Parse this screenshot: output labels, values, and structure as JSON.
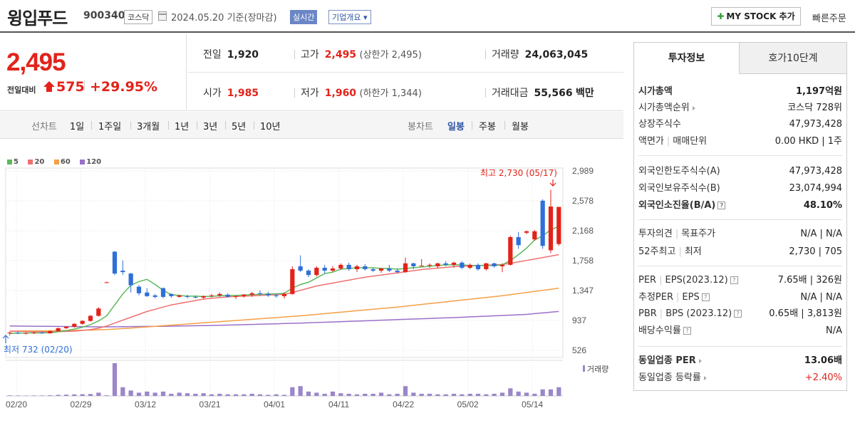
{
  "header": {
    "name": "윙입푸드",
    "code": "900340",
    "market": "코스닥",
    "date": "2024.05.20",
    "basis": "기준(장마감)",
    "realtime": "실시간",
    "company_overview": "기업개요 ▾",
    "mystock_label": "MY STOCK 추가",
    "quick_order": "빠른주문"
  },
  "price": {
    "current": "2,495",
    "change_label": "전일대비",
    "change": "575",
    "change_pct": "+29.95%"
  },
  "stats": {
    "prev_label": "전일",
    "prev": "1,920",
    "high_label": "고가",
    "high": "2,495",
    "upper_limit": "(상한가 2,495)",
    "volume_label": "거래량",
    "volume": "24,063,045",
    "open_label": "시가",
    "open": "1,985",
    "low_label": "저가",
    "low": "1,960",
    "lower_limit": "(하한가 1,344)",
    "amount_label": "거래대금",
    "amount": "55,566",
    "amount_unit": "백만"
  },
  "period_bar": {
    "line_label": "선차트",
    "periods": [
      "1일",
      "1주일",
      "3개월",
      "1년",
      "3년",
      "5년",
      "10년"
    ],
    "candle_label": "봉차트",
    "candles": [
      "일봉",
      "주봉",
      "월봉"
    ],
    "selected_candle": "일봉"
  },
  "colors": {
    "up": "#e2231a",
    "down": "#2f6fd8",
    "ma5": "#5cb85c",
    "ma20": "#f07070",
    "ma60": "#f5a047",
    "ma120": "#9b70c9",
    "volume": "#9b86c9"
  },
  "chart_data": {
    "type": "candlestick",
    "legend": [
      "5",
      "20",
      "60",
      "120"
    ],
    "y_ticks": [
      "2,989",
      "2,578",
      "2,168",
      "1,758",
      "1,347",
      "937",
      "526"
    ],
    "y_range": [
      526,
      2989
    ],
    "x_ticks": [
      "02/20",
      "02/29",
      "03/12",
      "03/21",
      "04/01",
      "04/11",
      "04/22",
      "05/02",
      "05/14"
    ],
    "annotation_high": "최고 2,730 (05/17)",
    "annotation_low": "최저 732 (02/20)",
    "volume_label": "거래량",
    "candles": [
      {
        "o": 760,
        "h": 780,
        "l": 732,
        "c": 770
      },
      {
        "o": 770,
        "h": 790,
        "l": 750,
        "c": 760
      },
      {
        "o": 760,
        "h": 775,
        "l": 745,
        "c": 765
      },
      {
        "o": 765,
        "h": 780,
        "l": 750,
        "c": 770
      },
      {
        "o": 770,
        "h": 785,
        "l": 755,
        "c": 760
      },
      {
        "o": 760,
        "h": 800,
        "l": 755,
        "c": 790
      },
      {
        "o": 790,
        "h": 840,
        "l": 780,
        "c": 830
      },
      {
        "o": 830,
        "h": 860,
        "l": 820,
        "c": 850
      },
      {
        "o": 850,
        "h": 900,
        "l": 840,
        "c": 890
      },
      {
        "o": 890,
        "h": 940,
        "l": 880,
        "c": 930
      },
      {
        "o": 930,
        "h": 1010,
        "l": 920,
        "c": 1000
      },
      {
        "o": 1000,
        "h": 1120,
        "l": 990,
        "c": 1100
      },
      {
        "o": 1460,
        "h": 1470,
        "l": 1450,
        "c": 1460
      },
      {
        "o": 1880,
        "h": 1890,
        "l": 1560,
        "c": 1580
      },
      {
        "o": 1620,
        "h": 1760,
        "l": 1560,
        "c": 1600
      },
      {
        "o": 1580,
        "h": 1590,
        "l": 1320,
        "c": 1420
      },
      {
        "o": 1400,
        "h": 1420,
        "l": 1280,
        "c": 1310
      },
      {
        "o": 1320,
        "h": 1380,
        "l": 1260,
        "c": 1270
      },
      {
        "o": 1280,
        "h": 1300,
        "l": 1240,
        "c": 1260
      },
      {
        "o": 1380,
        "h": 1390,
        "l": 1240,
        "c": 1260
      },
      {
        "o": 1300,
        "h": 1310,
        "l": 1250,
        "c": 1270
      },
      {
        "o": 1260,
        "h": 1290,
        "l": 1250,
        "c": 1280
      },
      {
        "o": 1270,
        "h": 1290,
        "l": 1240,
        "c": 1260
      },
      {
        "o": 1260,
        "h": 1280,
        "l": 1240,
        "c": 1250
      },
      {
        "o": 1250,
        "h": 1280,
        "l": 1230,
        "c": 1270
      },
      {
        "o": 1270,
        "h": 1300,
        "l": 1250,
        "c": 1280
      },
      {
        "o": 1280,
        "h": 1320,
        "l": 1260,
        "c": 1300
      },
      {
        "o": 1290,
        "h": 1310,
        "l": 1250,
        "c": 1260
      },
      {
        "o": 1260,
        "h": 1280,
        "l": 1230,
        "c": 1270
      },
      {
        "o": 1270,
        "h": 1300,
        "l": 1250,
        "c": 1290
      },
      {
        "o": 1290,
        "h": 1330,
        "l": 1260,
        "c": 1310
      },
      {
        "o": 1310,
        "h": 1350,
        "l": 1280,
        "c": 1300
      },
      {
        "o": 1300,
        "h": 1330,
        "l": 1260,
        "c": 1280
      },
      {
        "o": 1280,
        "h": 1310,
        "l": 1250,
        "c": 1270
      },
      {
        "o": 1270,
        "h": 1320,
        "l": 1240,
        "c": 1300
      },
      {
        "o": 1300,
        "h": 1680,
        "l": 1290,
        "c": 1640
      },
      {
        "o": 1680,
        "h": 1830,
        "l": 1600,
        "c": 1620
      },
      {
        "o": 1620,
        "h": 1640,
        "l": 1530,
        "c": 1560
      },
      {
        "o": 1560,
        "h": 1680,
        "l": 1540,
        "c": 1660
      },
      {
        "o": 1660,
        "h": 1700,
        "l": 1580,
        "c": 1620
      },
      {
        "o": 1620,
        "h": 1680,
        "l": 1600,
        "c": 1650
      },
      {
        "o": 1650,
        "h": 1720,
        "l": 1630,
        "c": 1700
      },
      {
        "o": 1700,
        "h": 1730,
        "l": 1620,
        "c": 1640
      },
      {
        "o": 1640,
        "h": 1700,
        "l": 1600,
        "c": 1680
      },
      {
        "o": 1680,
        "h": 1710,
        "l": 1620,
        "c": 1640
      },
      {
        "o": 1640,
        "h": 1660,
        "l": 1600,
        "c": 1620
      },
      {
        "o": 1620,
        "h": 1660,
        "l": 1590,
        "c": 1650
      },
      {
        "o": 1650,
        "h": 1700,
        "l": 1600,
        "c": 1620
      },
      {
        "o": 1620,
        "h": 1650,
        "l": 1580,
        "c": 1600
      },
      {
        "o": 1600,
        "h": 1800,
        "l": 1590,
        "c": 1720
      },
      {
        "o": 1720,
        "h": 1730,
        "l": 1640,
        "c": 1680
      },
      {
        "o": 1690,
        "h": 1780,
        "l": 1685,
        "c": 1690
      },
      {
        "o": 1690,
        "h": 1720,
        "l": 1660,
        "c": 1700
      },
      {
        "o": 1680,
        "h": 1730,
        "l": 1650,
        "c": 1720
      },
      {
        "o": 1720,
        "h": 1750,
        "l": 1680,
        "c": 1700
      },
      {
        "o": 1700,
        "h": 1740,
        "l": 1660,
        "c": 1730
      },
      {
        "o": 1730,
        "h": 1750,
        "l": 1640,
        "c": 1660
      },
      {
        "o": 1660,
        "h": 1720,
        "l": 1640,
        "c": 1700
      },
      {
        "o": 1700,
        "h": 1720,
        "l": 1620,
        "c": 1640
      },
      {
        "o": 1640,
        "h": 1730,
        "l": 1620,
        "c": 1720
      },
      {
        "o": 1720,
        "h": 1730,
        "l": 1660,
        "c": 1680
      },
      {
        "o": 1680,
        "h": 1720,
        "l": 1600,
        "c": 1700
      },
      {
        "o": 1700,
        "h": 2100,
        "l": 1690,
        "c": 2080
      },
      {
        "o": 2080,
        "h": 2150,
        "l": 1920,
        "c": 1970
      },
      {
        "o": 2140,
        "h": 2170,
        "l": 2120,
        "c": 2160
      },
      {
        "o": 2050,
        "h": 2180,
        "l": 2030,
        "c": 2160
      },
      {
        "o": 2580,
        "h": 2600,
        "l": 1920,
        "c": 1960
      },
      {
        "o": 1900,
        "h": 2730,
        "l": 1860,
        "c": 2500
      },
      {
        "o": 1985,
        "h": 2495,
        "l": 1960,
        "c": 2495
      }
    ],
    "ma5": [
      760,
      762,
      764,
      766,
      765,
      768,
      781,
      798,
      818,
      844,
      880,
      930,
      1000,
      1150,
      1300,
      1420,
      1470,
      1500,
      1430,
      1350,
      1290,
      1280,
      1270,
      1270,
      1265,
      1268,
      1275,
      1280,
      1280,
      1285,
      1290,
      1295,
      1300,
      1300,
      1310,
      1380,
      1430,
      1460,
      1520,
      1580,
      1600,
      1640,
      1650,
      1660,
      1660,
      1660,
      1650,
      1650,
      1640,
      1650,
      1660,
      1670,
      1680,
      1690,
      1700,
      1700,
      1700,
      1690,
      1690,
      1690,
      1690,
      1700,
      1760,
      1840,
      1930,
      2040,
      2100,
      2180,
      2230
    ],
    "ma20": [
      790,
      788,
      786,
      784,
      782,
      780,
      782,
      786,
      790,
      800,
      812,
      830,
      860,
      900,
      940,
      980,
      1020,
      1060,
      1090,
      1120,
      1150,
      1170,
      1190,
      1210,
      1230,
      1240,
      1250,
      1260,
      1265,
      1270,
      1275,
      1280,
      1285,
      1290,
      1295,
      1320,
      1350,
      1380,
      1410,
      1430,
      1450,
      1470,
      1490,
      1510,
      1530,
      1545,
      1560,
      1575,
      1590,
      1605,
      1620,
      1635,
      1645,
      1655,
      1665,
      1675,
      1680,
      1685,
      1690,
      1695,
      1700,
      1705,
      1720,
      1740,
      1760,
      1780,
      1800,
      1820,
      1840
    ],
    "ma60": [
      790,
      791,
      792,
      793,
      794,
      795,
      797,
      799,
      801,
      803,
      805,
      808,
      812,
      818,
      825,
      832,
      840,
      848,
      856,
      864,
      872,
      880,
      888,
      896,
      904,
      912,
      920,
      928,
      936,
      944,
      952,
      960,
      968,
      976,
      984,
      992,
      1000,
      1010,
      1020,
      1030,
      1040,
      1050,
      1060,
      1070,
      1080,
      1090,
      1100,
      1110,
      1120,
      1132,
      1144,
      1156,
      1168,
      1180,
      1192,
      1204,
      1216,
      1228,
      1240,
      1252,
      1264,
      1276,
      1290,
      1305,
      1320,
      1335,
      1350,
      1365,
      1380
    ],
    "ma120": [
      860,
      859,
      858,
      857,
      856,
      855,
      854,
      853,
      852,
      851,
      850,
      849,
      849,
      850,
      851,
      852,
      853,
      854,
      855,
      856,
      858,
      860,
      862,
      864,
      866,
      868,
      870,
      873,
      876,
      879,
      882,
      885,
      888,
      891,
      894,
      897,
      900,
      904,
      908,
      912,
      916,
      920,
      924,
      928,
      932,
      936,
      940,
      944,
      948,
      952,
      956,
      960,
      964,
      968,
      972,
      976,
      980,
      985,
      990,
      995,
      1000,
      1005,
      1010,
      1015,
      1020,
      1030,
      1040,
      1050,
      1060
    ],
    "volume": [
      5,
      4,
      3,
      4,
      4,
      6,
      10,
      12,
      14,
      16,
      18,
      30,
      6,
      300,
      80,
      50,
      30,
      40,
      30,
      40,
      20,
      30,
      25,
      20,
      25,
      15,
      20,
      15,
      15,
      15,
      20,
      15,
      10,
      15,
      10,
      80,
      90,
      40,
      30,
      20,
      40,
      25,
      20,
      15,
      20,
      20,
      30,
      15,
      20,
      90,
      30,
      20,
      20,
      15,
      15,
      20,
      15,
      20,
      20,
      15,
      20,
      30,
      70,
      40,
      30,
      20,
      60,
      60,
      80
    ]
  },
  "right_panel": {
    "tab_active": "투자정보",
    "tab_inactive": "호가10단계",
    "market_cap_label": "시가총액",
    "market_cap": "1,197억원",
    "cap_rank_label": "시가총액순위",
    "cap_rank": "코스닥 728위",
    "listed_label": "상장주식수",
    "listed": "47,973,428",
    "par_label": "액면가",
    "unit_label": "매매단위",
    "par_unit": "0.00 HKD | 1주",
    "foreign_limit_label": "외국인한도주식수(A)",
    "foreign_limit": "47,973,428",
    "foreign_hold_label": "외국인보유주식수(B)",
    "foreign_hold": "23,074,994",
    "foreign_ratio_label": "외국인소진율(B/A)",
    "foreign_ratio": "48.10%",
    "opinion_label": "투자의견",
    "target_label": "목표주가",
    "opinion_target": "N/A | N/A",
    "week52_label": "52주최고",
    "week52_low_label": "최저",
    "week52": "2,730 | 705",
    "per_label": "PER",
    "eps_label": "EPS(2023.12)",
    "per_eps": "7.65배 | 326원",
    "est_per_label": "추정PER",
    "est_eps_label": "EPS",
    "est_per_eps": "N/A | N/A",
    "pbr_label": "PBR",
    "bps_label": "BPS (2023.12)",
    "pbr_bps": "0.65배 | 3,813원",
    "dividend_label": "배당수익률",
    "dividend": "N/A",
    "sector_per_label": "동일업종 PER",
    "sector_per": "13.06배",
    "sector_rate_label": "동일업종 등락률",
    "sector_rate": "+2.40%"
  }
}
